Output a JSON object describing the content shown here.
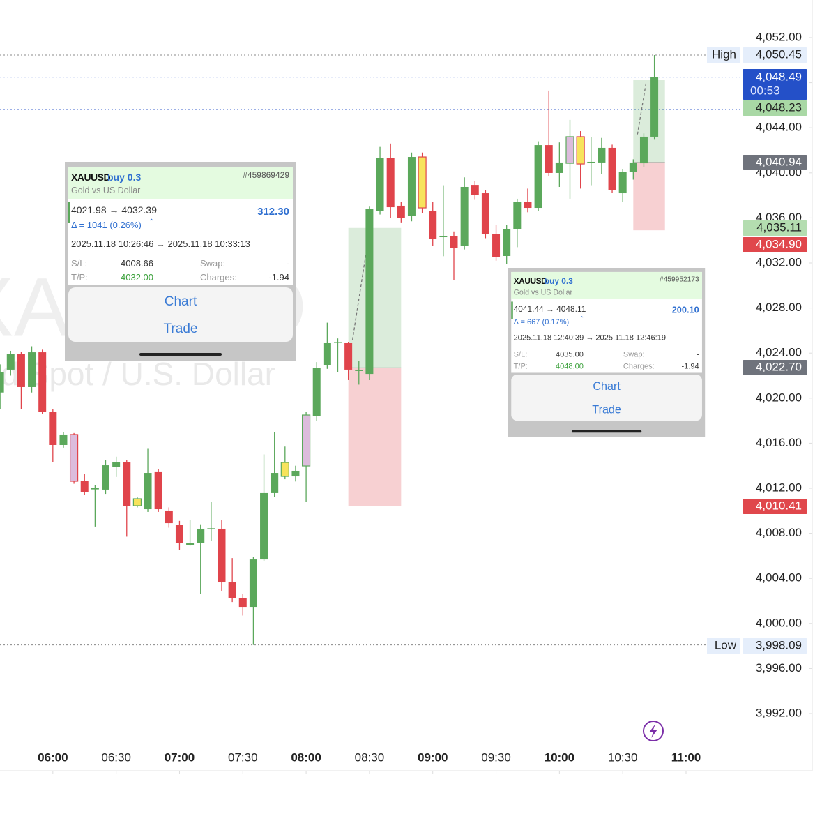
{
  "chart_data": {
    "type": "candlestick",
    "watermark": {
      "symbol": "XAUUSD",
      "description": "Gold Spot / U.S. Dollar"
    },
    "x": [
      "05:35",
      "05:40",
      "05:45",
      "05:50",
      "05:55",
      "06:00",
      "06:05",
      "06:10",
      "06:15",
      "06:20",
      "06:25",
      "06:30",
      "06:35",
      "06:40",
      "06:45",
      "06:50",
      "06:55",
      "07:00",
      "07:05",
      "07:10",
      "07:15",
      "07:20",
      "07:25",
      "07:30",
      "07:35",
      "07:40",
      "07:45",
      "07:50",
      "07:55",
      "08:00",
      "08:05",
      "08:10",
      "08:15",
      "08:20",
      "08:25",
      "08:30",
      "08:35",
      "08:40",
      "08:45",
      "08:50",
      "08:55",
      "09:00",
      "09:05",
      "09:10",
      "09:15",
      "09:20",
      "09:25",
      "09:30",
      "09:35",
      "09:40",
      "09:45",
      "09:50",
      "09:55",
      "10:00",
      "10:05",
      "10:10",
      "10:15",
      "10:20",
      "10:25",
      "10:30",
      "10:35",
      "10:40",
      "10:45"
    ],
    "open": [
      4020.5,
      4022.53,
      4023.89,
      4020.98,
      4024.07,
      4018.81,
      4015.84,
      4016.77,
      4012.62,
      4011.9,
      4011.88,
      4013.86,
      4014.29,
      4010.45,
      4010.14,
      4013.49,
      4010.02,
      4008.78,
      4006.98,
      4007.17,
      4008.41,
      4008.41,
      4003.64,
      4002.22,
      4001.47,
      4005.68,
      4011.57,
      4013.05,
      4013.05,
      4013.98,
      4018.38,
      4022.9,
      4024.95,
      4024.88,
      4022.46,
      4022.15,
      4036.64,
      4041.29,
      4037.08,
      4036.15,
      4041.41,
      4036.64,
      4034.29,
      4034.41,
      4033.49,
      4038.93,
      4038.19,
      4034.6,
      4032.62,
      4035.03,
      4037.39,
      4036.89,
      4042.46,
      4039.99,
      4040.85,
      4043.21,
      4040.92,
      4040.92,
      4042.22,
      4038.19,
      4040.11,
      4040.85,
      4043.21
    ],
    "high": [
      4023,
      4024.2,
      4024.1,
      4024.6,
      4024.3,
      4019,
      4017,
      4016.9,
      4013.3,
      4012.3,
      4014.5,
      4014.8,
      4014.5,
      4011.2,
      4015.5,
      4013.7,
      4010.3,
      4009.1,
      4009.2,
      4008.8,
      4010.8,
      4009.2,
      4005.8,
      4002.6,
      4005.9,
      4015,
      4017,
      4015.7,
      4014,
      4018.8,
      4023.2,
      4026.7,
      4025.3,
      4025,
      4023.3,
      4037,
      4042.3,
      4042.6,
      4037.4,
      4041.8,
      4041.8,
      4037.4,
      4038.9,
      4034.8,
      4039.6,
      4039.3,
      4038.5,
      4035.4,
      4035.4,
      4037.7,
      4038.6,
      4042.8,
      4047.3,
      4042.7,
      4044.7,
      4043.7,
      4043.2,
      4043.1,
      4042.5,
      4040.3,
      4041.2,
      4043.5,
      4050.45
    ],
    "low": [
      4019,
      4022,
      4019,
      4020.5,
      4018.6,
      4014.35,
      4015.6,
      4012.4,
      4011.4,
      4008.6,
      4011.5,
      4013,
      4007.7,
      4010.3,
      4009.9,
      4009.9,
      4008.5,
      4006.5,
      4006.9,
      4002.6,
      4007.3,
      4002.9,
      4001.9,
      4000.7,
      3998.09,
      4005.5,
      4011.2,
      4012.8,
      4012.6,
      4010.8,
      4018,
      4022.6,
      4022.3,
      4021.6,
      4021.2,
      4021.6,
      4036.3,
      4036,
      4035.6,
      4035.7,
      4036.4,
      4033.5,
      4032.6,
      4030.5,
      4033.2,
      4037.6,
      4034.2,
      4032.2,
      4031.9,
      4033.4,
      4036.5,
      4036.6,
      4039.7,
      4038.75,
      4037.7,
      4038.6,
      4038.9,
      4039.9,
      4038.2,
      4037.39,
      4039.4,
      4040.5,
      4043
    ],
    "close": [
      4022.3,
      4023.89,
      4020.98,
      4024.07,
      4018.81,
      4015.84,
      4016.77,
      4012.62,
      4011.69,
      4012.0,
      4014.04,
      4014.29,
      4010.45,
      4011.07,
      4013.36,
      4010.14,
      4008.9,
      4007.17,
      4007.17,
      4008.41,
      4008.45,
      4003.64,
      4002.22,
      4001.47,
      4005.68,
      4011.57,
      4013.36,
      4014.29,
      4013.55,
      4018.5,
      4022.71,
      4024.88,
      4025.0,
      4022.53,
      4022.5,
      4036.77,
      4041.29,
      4036.95,
      4036.02,
      4041.41,
      4036.89,
      4034.11,
      4034.41,
      4033.3,
      4038.75,
      4038.01,
      4034.6,
      4032.5,
      4035.03,
      4037.39,
      4036.89,
      4042.46,
      4039.99,
      4040.92,
      4043.21,
      4040.79,
      4040.98,
      4042.22,
      4038.44,
      4040.05,
      4040.92,
      4043.21,
      4048.49
    ],
    "colors": [
      "#5ba85b",
      "#5ba85b",
      "#e0444b",
      "#5ba85b",
      "#e0444b",
      "#e0444b",
      "#5ba85b",
      "#dcbcdc",
      "#e0444b",
      "#5ba85b",
      "#5ba85b",
      "#5ba85b",
      "#e0444b",
      "#f7e35c",
      "#5ba85b",
      "#e0444b",
      "#e0444b",
      "#e0444b",
      "#5ba85b",
      "#5ba85b",
      "#5ba85b",
      "#e0444b",
      "#e0444b",
      "#e0444b",
      "#5ba85b",
      "#5ba85b",
      "#5ba85b",
      "#f7e35c",
      "#5ba85b",
      "#dcbcdc",
      "#5ba85b",
      "#5ba85b",
      "#5ba85b",
      "#e0444b",
      "#5ba85b",
      "#5ba85b",
      "#5ba85b",
      "#e0444b",
      "#e0444b",
      "#5ba85b",
      "#f7e35c",
      "#e0444b",
      "#5ba85b",
      "#e0444b",
      "#5ba85b",
      "#e0444b",
      "#e0444b",
      "#e0444b",
      "#5ba85b",
      "#5ba85b",
      "#e0444b",
      "#5ba85b",
      "#e0444b",
      "#5ba85b",
      "#dcbcdc",
      "#f7e35c",
      "#5ba85b",
      "#5ba85b",
      "#e0444b",
      "#5ba85b",
      "#5ba85b",
      "#5ba85b",
      "#5ba85b"
    ],
    "up_color": "#5ba85b",
    "down_color": "#e0444b",
    "xlim": [
      "05:30",
      "11:00"
    ],
    "xticks": [
      "06:00",
      "06:30",
      "07:00",
      "07:30",
      "08:00",
      "08:30",
      "09:00",
      "09:30",
      "10:00",
      "10:30",
      "11:00"
    ],
    "ylim": [
      3992,
      4052
    ],
    "yticks": [
      {
        "value": 4052,
        "label": "4,052.00"
      },
      {
        "value": 4048,
        "label": "4,048.00"
      },
      {
        "value": 4044,
        "label": "4,044.00"
      },
      {
        "value": 4040,
        "label": "4,040.00"
      },
      {
        "value": 4036,
        "label": "4,036.00"
      },
      {
        "value": 4032,
        "label": "4,032.00"
      },
      {
        "value": 4028,
        "label": "4,028.00"
      },
      {
        "value": 4024,
        "label": "4,024.00"
      },
      {
        "value": 4020,
        "label": "4,020.00"
      },
      {
        "value": 4016,
        "label": "4,016.00"
      },
      {
        "value": 4012,
        "label": "4,012.00"
      },
      {
        "value": 4008,
        "label": "4,008.00"
      },
      {
        "value": 4004,
        "label": "4,004.00"
      },
      {
        "value": 4000,
        "label": "4,000.00"
      },
      {
        "value": 3996,
        "label": "3,996.00"
      },
      {
        "value": 3992,
        "label": "3,992.00"
      }
    ],
    "high_marker": {
      "name": "High",
      "value": 4050.45,
      "label": "4,050.45"
    },
    "low_marker": {
      "name": "Low",
      "value": 3998.09,
      "label": "3,998.09"
    },
    "last_price": {
      "value": 4048.49,
      "label": "4,048.49",
      "countdown": "00:53"
    },
    "positions": [
      {
        "start": "08:20",
        "end": "08:45",
        "entry": {
          "value": 4022.7,
          "label": "4,022.70"
        },
        "take_profit": {
          "value": 4035.11,
          "label": "4,035.11"
        },
        "stop_loss": {
          "value": 4010.41,
          "label": "4,010.41"
        }
      },
      {
        "start": "10:35",
        "end": "10:50",
        "entry": {
          "value": 4040.94,
          "label": "4,040.94"
        },
        "take_profit": {
          "value": 4048.23,
          "label": "4,048.23"
        },
        "stop_loss": {
          "value": 4034.9,
          "label": "4,034.90"
        }
      }
    ]
  },
  "trades": [
    {
      "symbol": "XAUUSD",
      "side": "buy 0.3",
      "ticket": "#459869429",
      "description": "Gold vs US Dollar",
      "prices": "4021.98 → 4032.39",
      "profit": "312.30",
      "delta": "Δ = 1041 (0.26%)",
      "times": "2025.11.18 10:26:46 → 2025.11.18 10:33:13",
      "sl_label": "S/L:",
      "sl": "4008.66",
      "tp_label": "T/P:",
      "tp": "4032.00",
      "swap_label": "Swap:",
      "swap": "-",
      "charges_label": "Charges:",
      "charges": "-1.94",
      "actions": [
        "Chart",
        "Trade"
      ]
    },
    {
      "symbol": "XAUUSD",
      "side": "buy 0.3",
      "ticket": "#459952173",
      "description": "Gold vs US Dollar",
      "prices": "4041.44 → 4048.11",
      "profit": "200.10",
      "delta": "Δ = 667 (0.17%)",
      "times": "2025.11.18 12:40:39 → 2025.11.18 12:46:19",
      "sl_label": "S/L:",
      "sl": "4035.00",
      "tp_label": "T/P:",
      "tp": "4048.00",
      "swap_label": "Swap:",
      "swap": "-",
      "charges_label": "Charges:",
      "charges": "-1.94",
      "actions": [
        "Chart",
        "Trade"
      ]
    }
  ]
}
